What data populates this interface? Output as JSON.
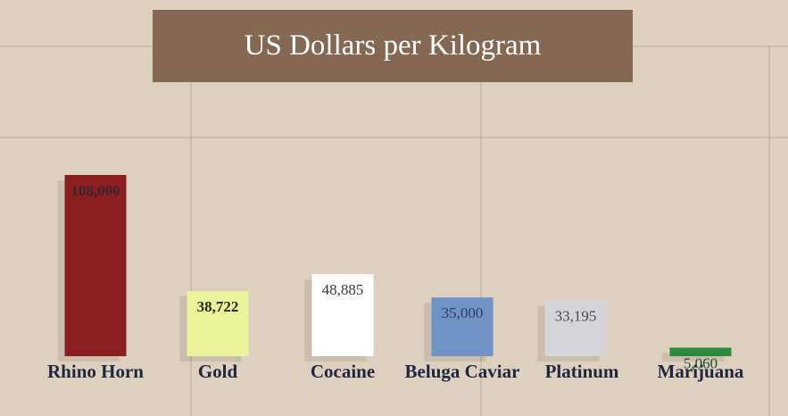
{
  "chart_data": {
    "type": "bar",
    "title": "US Dollars per Kilogram",
    "categories": [
      "Rhino Horn",
      "Gold",
      "Cocaine",
      "Beluga Caviar",
      "Platinum",
      "Marijuana"
    ],
    "values": [
      108000,
      38722,
      48885,
      35000,
      33195,
      5060
    ],
    "value_labels": [
      "108,000",
      "38,722",
      "48,885",
      "35,000",
      "33,195",
      "5,060"
    ],
    "bar_colors": [
      "#8b1f1f",
      "#eaf49a",
      "#ffffff",
      "#7092c4",
      "#d5d4d9",
      "#2a8a3c"
    ],
    "value_label_colors": [
      "#3a2430",
      "#2b2a14",
      "#3a3a3a",
      "#2e3f60",
      "#4a4a4a",
      "#1f4f28"
    ],
    "xlabel": "",
    "ylabel": "",
    "ylim": [
      0,
      108000
    ],
    "grid": true,
    "legend": "none"
  }
}
